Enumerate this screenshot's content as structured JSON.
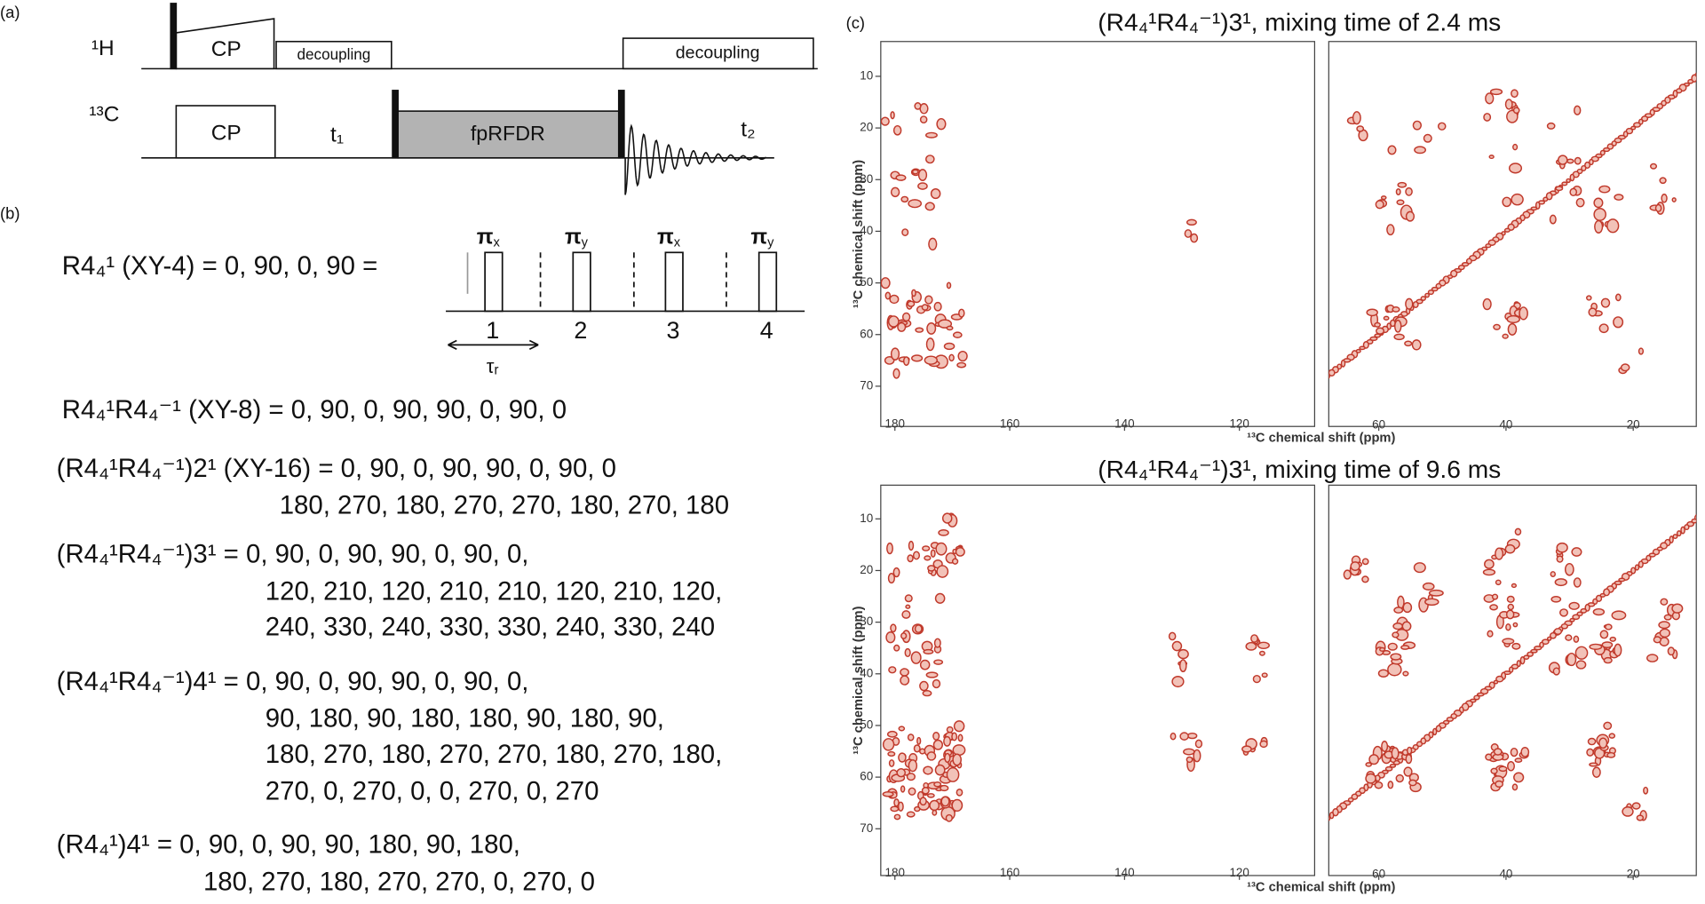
{
  "panel_a": {
    "label": "(a)",
    "h_channel": "¹H",
    "c_channel": "¹³C",
    "h_cp": "CP",
    "h_decoupling_1": "decoupling",
    "h_decoupling_2": "decoupling",
    "c_cp": "CP",
    "t1": "t₁",
    "mixing": "fpRFDR",
    "t2": "t₂"
  },
  "panel_b": {
    "label": "(b)",
    "xy4": "R4₄¹ (XY-4) = 0, 90, 0, 90 =",
    "pulses": [
      {
        "symbol": "π",
        "sub": "x"
      },
      {
        "symbol": "π",
        "sub": "y"
      },
      {
        "symbol": "π",
        "sub": "x"
      },
      {
        "symbol": "π",
        "sub": "y"
      }
    ],
    "slots": [
      "1",
      "2",
      "3",
      "4"
    ],
    "tau": "τᵣ",
    "equations": [
      [
        "R4₄¹R4₄⁻¹ (XY-8) = 0, 90, 0, 90, 90, 0, 90, 0"
      ],
      [
        "(R4₄¹R4₄⁻¹)2¹ (XY-16) = 0, 90, 0, 90, 90, 0, 90, 0",
        "180, 270, 180, 270, 270, 180, 270, 180"
      ],
      [
        "(R4₄¹R4₄⁻¹)3¹ = 0, 90, 0, 90, 90, 0, 90, 0,",
        "120, 210, 120, 210, 210, 120, 210, 120,",
        "240, 330, 240, 330, 330, 240, 330, 240"
      ],
      [
        "(R4₄¹R4₄⁻¹)4¹ = 0, 90, 0, 90, 90, 0, 90, 0,",
        "90, 180, 90, 180, 180, 90, 180, 90,",
        "180, 270, 180, 270, 270, 180, 270, 180,",
        "270, 0, 270, 0, 0, 270, 0, 270"
      ],
      [
        "(R4₄¹)4¹ = 0, 90, 0, 90, 90, 180, 90, 180,",
        "180, 270, 180, 270, 270, 0, 270, 0"
      ]
    ]
  },
  "panel_c": {
    "label": "(c)",
    "spectra": [
      {
        "title": "(R4₄¹R4₄⁻¹)3¹, mixing time of 2.4 ms",
        "x_label": "¹³C chemical shift (ppm)",
        "y_label": "¹³C chemical shift (ppm)",
        "left_xticks": [
          180,
          160,
          140,
          120
        ],
        "right_xticks": [
          60,
          40,
          20
        ],
        "yticks": [
          10,
          20,
          30,
          40,
          50,
          60,
          70
        ]
      },
      {
        "title": "(R4₄¹R4₄⁻¹)3¹, mixing time of 9.6 ms",
        "x_label": "¹³C chemical shift (ppm)",
        "y_label": "¹³C chemical shift (ppm)",
        "left_xticks": [
          180,
          160,
          140,
          120
        ],
        "right_xticks": [
          60,
          40,
          20
        ],
        "yticks": [
          10,
          20,
          30,
          40,
          50,
          60,
          70
        ]
      }
    ]
  }
}
